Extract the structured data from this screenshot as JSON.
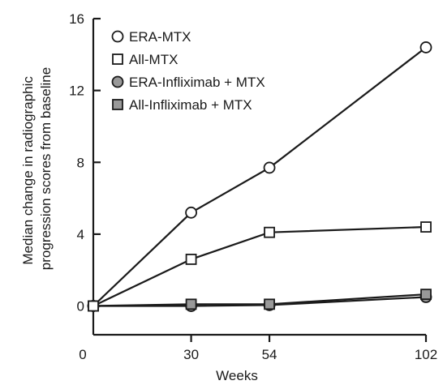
{
  "chart_data": {
    "type": "line",
    "title": "",
    "xlabel": "Weeks",
    "ylabel_lines": [
      "Median change in radiographic",
      "progression scores from baseline"
    ],
    "x_ticks": [
      0,
      30,
      54,
      102
    ],
    "y_ticks": [
      0,
      4,
      8,
      12,
      16
    ],
    "xlim": [
      0,
      102
    ],
    "ylim": [
      -1.6,
      16
    ],
    "grid": false,
    "legend_position": "top-left",
    "series": [
      {
        "name": "ERA-MTX",
        "marker": "circle",
        "fill": "#ffffff",
        "x": [
          0,
          30,
          54,
          102
        ],
        "y": [
          0,
          5.2,
          7.7,
          14.4
        ]
      },
      {
        "name": "All-MTX",
        "marker": "square",
        "fill": "#ffffff",
        "x": [
          0,
          30,
          54,
          102
        ],
        "y": [
          0,
          2.6,
          4.1,
          4.4
        ]
      },
      {
        "name": "ERA-Infliximab + MTX",
        "marker": "circle",
        "fill": "#999999",
        "x": [
          0,
          30,
          54,
          102
        ],
        "y": [
          0,
          0.0,
          0.05,
          0.5
        ]
      },
      {
        "name": "All-Infliximab + MTX",
        "marker": "square",
        "fill": "#999999",
        "x": [
          0,
          30,
          54,
          102
        ],
        "y": [
          0,
          0.1,
          0.1,
          0.65
        ]
      }
    ]
  }
}
